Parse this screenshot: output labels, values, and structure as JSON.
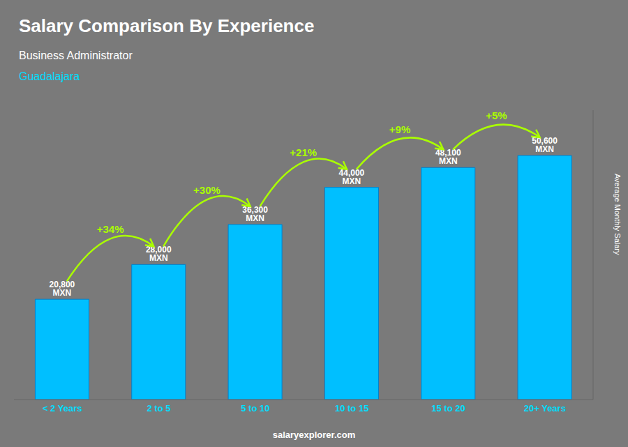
{
  "chart_data": {
    "type": "bar",
    "title": "Salary Comparison By Experience",
    "subtitle": "Business Administrator",
    "city": "Guadalajara",
    "y_label": "Average Monthly Salary",
    "watermark": "salaryexplorer.com",
    "categories": [
      "< 2 Years",
      "2 to 5",
      "5 to 10",
      "10 to 15",
      "15 to 20",
      "20+ Years"
    ],
    "values": [
      20800,
      28000,
      36300,
      44000,
      48100,
      50600
    ],
    "value_labels": [
      "20,800 MXN",
      "28,000 MXN",
      "36,300 MXN",
      "44,000 MXN",
      "48,100 MXN",
      "50,600 MXN"
    ],
    "data_labels": true,
    "annotations": [
      "+34%",
      "+30%",
      "+21%",
      "+9%",
      "+5%"
    ],
    "color": "#00BFFF",
    "ylim": [
      0,
      60000
    ],
    "tick_labels": "x",
    "grid": false
  }
}
